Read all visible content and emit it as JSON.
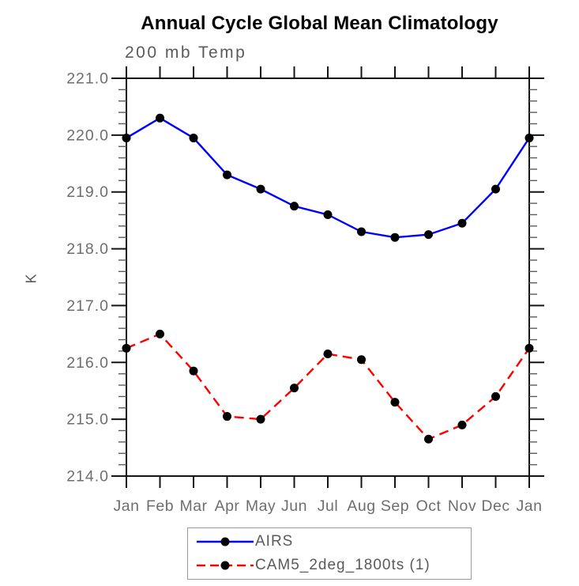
{
  "figure": {
    "background": "#ffffff",
    "axis_color": "#151515",
    "minor_tick_color": "#5c5c5c",
    "tick_label_color": "#6e6e6e",
    "text_color": "#5a5a5a",
    "legend_border_color": "#9a9a9a"
  },
  "chart_data": {
    "type": "line",
    "title": "Annual Cycle Global Mean Climatology",
    "subtitle": "200 mb Temp",
    "xlabel": "",
    "ylabel": "K",
    "categories": [
      "Jan",
      "Feb",
      "Mar",
      "Apr",
      "May",
      "Jun",
      "Jul",
      "Aug",
      "Sep",
      "Oct",
      "Nov",
      "Dec",
      "Jan"
    ],
    "ylim": [
      214.0,
      221.0
    ],
    "ytick_step": 1.0,
    "yminor_step": 0.2,
    "ytick_labels": [
      "214.0",
      "215.0",
      "216.0",
      "217.0",
      "218.0",
      "219.0",
      "220.0",
      "221.0"
    ],
    "grid": false,
    "legend_position": "bottom-center",
    "series": [
      {
        "name": "AIRS",
        "line_color": "#0000ff",
        "line_style": "solid",
        "marker": "circle",
        "marker_color": "#000000",
        "values": [
          219.95,
          220.3,
          219.95,
          219.3,
          219.05,
          218.75,
          218.6,
          218.3,
          218.2,
          218.25,
          218.45,
          219.05,
          219.95
        ]
      },
      {
        "name": "CAM5_2deg_1800ts (1)",
        "line_color": "#ff0000",
        "line_style": "dashed",
        "marker": "circle",
        "marker_color": "#000000",
        "values": [
          216.25,
          216.5,
          215.85,
          215.05,
          215.0,
          215.55,
          216.15,
          216.05,
          215.3,
          214.65,
          214.9,
          215.4,
          216.25
        ]
      }
    ]
  }
}
